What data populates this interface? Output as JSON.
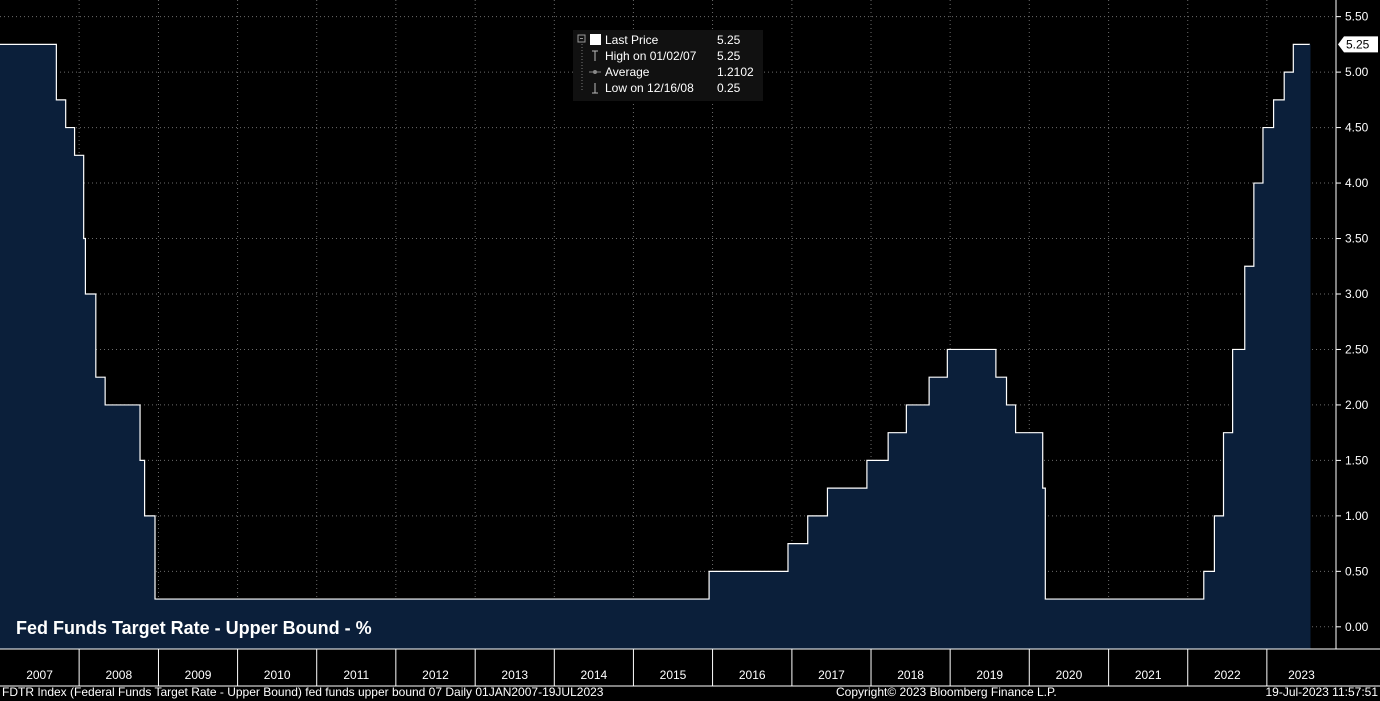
{
  "colors": {
    "background": "#000000",
    "area_fill": "#0b1f3a",
    "line": "#ffffff",
    "grid": "#6b6b6b",
    "axis_strip": "#ffffff"
  },
  "chart_data": {
    "type": "area",
    "title": "Fed Funds Target Rate - Upper Bound - %",
    "xlim": [
      "2007-01-01",
      "2023-07-19"
    ],
    "ylim": [
      -0.2,
      5.65
    ],
    "yticks": [
      0,
      0.5,
      1,
      1.5,
      2,
      2.5,
      3,
      3.5,
      4,
      4.5,
      5,
      5.5
    ],
    "ytick_labels": [
      "0.00",
      "0.50",
      "1.00",
      "1.50",
      "2.00",
      "2.50",
      "3.00",
      "3.50",
      "4.00",
      "4.50",
      "5.00",
      "5.50"
    ],
    "x_labels": [
      "2007",
      "2008",
      "2009",
      "2010",
      "2011",
      "2012",
      "2013",
      "2014",
      "2015",
      "2016",
      "2017",
      "2018",
      "2019",
      "2020",
      "2021",
      "2022",
      "2023"
    ],
    "grid": true,
    "series": [
      {
        "name": "Last Price",
        "steps": [
          {
            "date": "2007-01-01",
            "value": 5.25
          },
          {
            "date": "2007-09-18",
            "value": 4.75
          },
          {
            "date": "2007-10-31",
            "value": 4.5
          },
          {
            "date": "2007-12-11",
            "value": 4.25
          },
          {
            "date": "2008-01-22",
            "value": 3.5
          },
          {
            "date": "2008-01-30",
            "value": 3.0
          },
          {
            "date": "2008-03-18",
            "value": 2.25
          },
          {
            "date": "2008-04-30",
            "value": 2.0
          },
          {
            "date": "2008-10-08",
            "value": 1.5
          },
          {
            "date": "2008-10-29",
            "value": 1.0
          },
          {
            "date": "2008-12-16",
            "value": 0.25
          },
          {
            "date": "2015-12-16",
            "value": 0.5
          },
          {
            "date": "2016-12-14",
            "value": 0.75
          },
          {
            "date": "2017-03-15",
            "value": 1.0
          },
          {
            "date": "2017-06-14",
            "value": 1.25
          },
          {
            "date": "2017-12-13",
            "value": 1.5
          },
          {
            "date": "2018-03-21",
            "value": 1.75
          },
          {
            "date": "2018-06-13",
            "value": 2.0
          },
          {
            "date": "2018-09-26",
            "value": 2.25
          },
          {
            "date": "2018-12-19",
            "value": 2.5
          },
          {
            "date": "2019-07-31",
            "value": 2.25
          },
          {
            "date": "2019-09-18",
            "value": 2.0
          },
          {
            "date": "2019-10-30",
            "value": 1.75
          },
          {
            "date": "2020-03-03",
            "value": 1.25
          },
          {
            "date": "2020-03-15",
            "value": 0.25
          },
          {
            "date": "2022-03-16",
            "value": 0.5
          },
          {
            "date": "2022-05-04",
            "value": 1.0
          },
          {
            "date": "2022-06-15",
            "value": 1.75
          },
          {
            "date": "2022-07-27",
            "value": 2.5
          },
          {
            "date": "2022-09-21",
            "value": 3.25
          },
          {
            "date": "2022-11-02",
            "value": 4.0
          },
          {
            "date": "2022-12-14",
            "value": 4.5
          },
          {
            "date": "2023-02-01",
            "value": 4.75
          },
          {
            "date": "2023-03-22",
            "value": 5.0
          },
          {
            "date": "2023-05-03",
            "value": 5.25
          },
          {
            "date": "2023-07-19",
            "value": 5.25
          }
        ]
      }
    ],
    "last_value_label": "5.25"
  },
  "legend": {
    "items": [
      {
        "label": "Last Price",
        "value": "5.25",
        "icon": "square-swatch-icon"
      },
      {
        "label": "High on 01/02/07",
        "value": "5.25",
        "icon": "high-marker-icon"
      },
      {
        "label": "Average",
        "value": "1.2102",
        "icon": "average-marker-icon"
      },
      {
        "label": "Low on 12/16/08",
        "value": "0.25",
        "icon": "low-marker-icon"
      }
    ]
  },
  "footer": {
    "left": "FDTR Index (Federal Funds Target Rate - Upper Bound) fed funds upper bound 07  Daily 01JAN2007-19JUL2023",
    "center": "Copyright© 2023 Bloomberg Finance L.P.",
    "right": "19-Jul-2023 11:57:51"
  }
}
